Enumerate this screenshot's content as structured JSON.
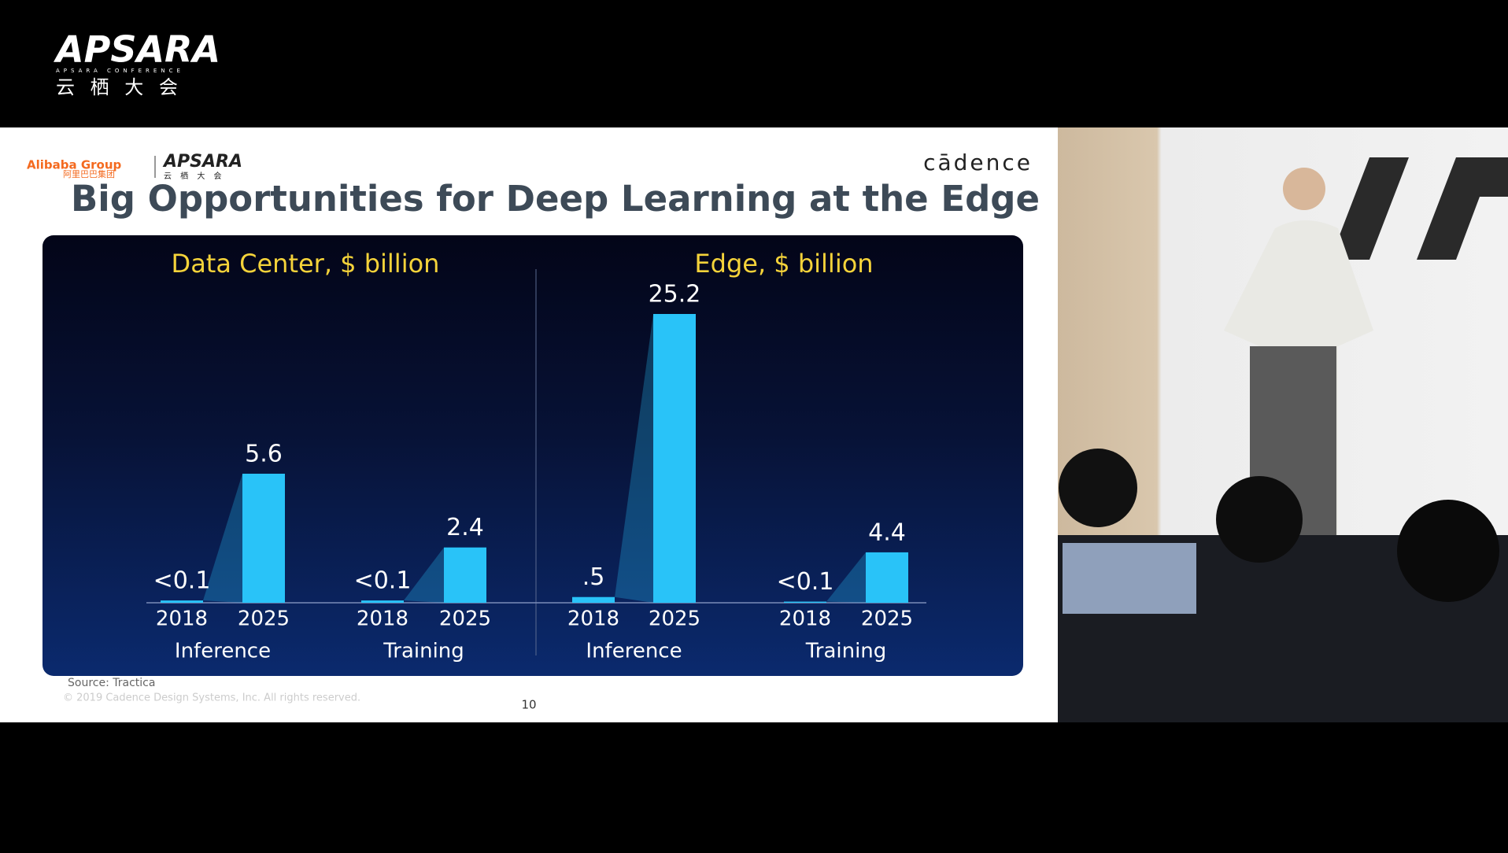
{
  "header": {
    "logo": "APSARA",
    "logo_sub": "APSARA CONFERENCE",
    "logo_cn": "云 栖 大 会"
  },
  "slide": {
    "brand_left": "Alibaba Group",
    "brand_left_cn": "阿里巴巴集团",
    "brand_mid": "APSARA",
    "brand_mid_cn": "云 栖 大 会",
    "brand_right": "cādence",
    "title": "Big Opportunities for Deep Learning at the Edge",
    "source": "Source: Tractica",
    "copyright": "© 2019 Cadence Design Systems, Inc.  All rights reserved.",
    "page": "10"
  },
  "chart_data": [
    {
      "type": "bar",
      "title": "Data Center, $ billion",
      "categories": [
        "2018",
        "2025",
        "2018",
        "2025"
      ],
      "groups": [
        "Inference",
        "Training"
      ],
      "values": [
        0.1,
        5.6,
        0.1,
        2.4
      ],
      "value_labels": [
        "<0.1",
        "5.6",
        "<0.1",
        "2.4"
      ],
      "color": "#29c3f8"
    },
    {
      "type": "bar",
      "title": "Edge, $ billion",
      "categories": [
        "2018",
        "2025",
        "2018",
        "2025"
      ],
      "groups": [
        "Inference",
        "Training"
      ],
      "values": [
        0.5,
        25.2,
        0.1,
        4.4
      ],
      "value_labels": [
        ".5",
        "25.2",
        "<0.1",
        "4.4"
      ],
      "color": "#29c3f8"
    }
  ]
}
